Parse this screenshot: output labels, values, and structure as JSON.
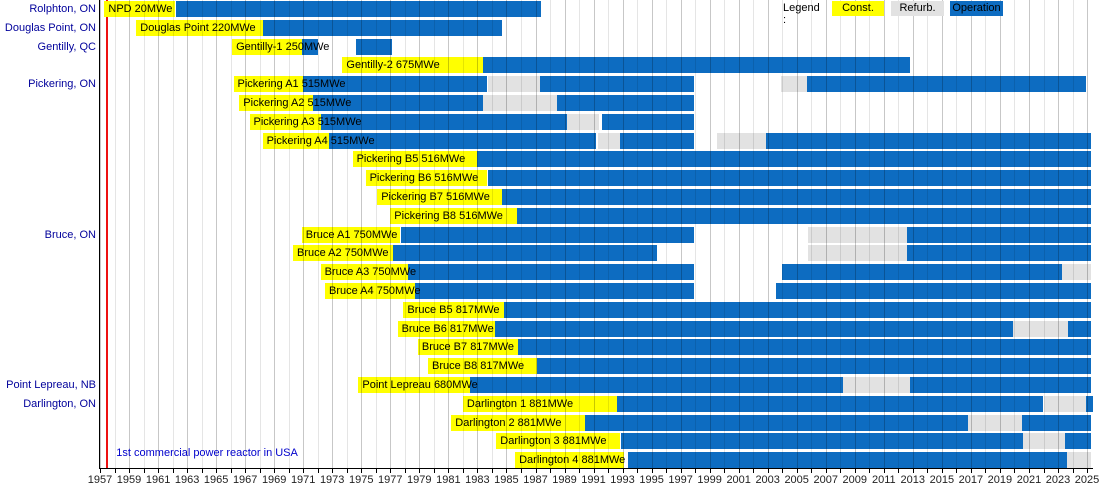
{
  "legend": {
    "title": "Legend :",
    "items": [
      {
        "label": "Const.",
        "type": "const"
      },
      {
        "label": "Refurb.",
        "type": "refurb"
      },
      {
        "label": "Operation",
        "type": "operation"
      }
    ]
  },
  "annotation": {
    "text": "1st commercial power reactor in USA",
    "year": 1957.5
  },
  "colors": {
    "const": "#ffff00",
    "refurb": "#e2e2e2",
    "operation": "#0d6cc1",
    "red_line": "#ee1111",
    "site_label": "#00009b",
    "annotation_text": "#0000cc"
  },
  "chart_data": {
    "type": "gantt",
    "x_axis": {
      "start": 1957,
      "end": 2025,
      "tick_step": 2,
      "tick_labels": [
        1957,
        1959,
        1961,
        1963,
        1965,
        1967,
        1969,
        1971,
        1973,
        1975,
        1977,
        1979,
        1981,
        1983,
        1985,
        1987,
        1989,
        1991,
        1993,
        1995,
        1997,
        1999,
        2001,
        2003,
        2005,
        2007,
        2009,
        2011,
        2013,
        2015,
        2017,
        2019,
        2021,
        2023,
        2025
      ]
    },
    "segment_types": [
      "const",
      "refurb",
      "operation"
    ],
    "rows": [
      {
        "site": "Rolphton, ON",
        "label": "NPD 20MWe",
        "segments": [
          [
            "const",
            1957.3,
            1962.2
          ],
          [
            "operation",
            1962.2,
            1987.4
          ]
        ]
      },
      {
        "site": "Douglas Point, ON",
        "label": "Douglas Point 220MWe",
        "segments": [
          [
            "const",
            1959.5,
            1968.2
          ],
          [
            "operation",
            1968.2,
            1984.7
          ]
        ]
      },
      {
        "site": "Gentilly, QC",
        "label": "Gentilly-1 250MWe",
        "segments": [
          [
            "const",
            1966.1,
            1970.9
          ],
          [
            "operation",
            1970.9,
            1972.0
          ],
          [
            "operation",
            1974.6,
            1977.1
          ]
        ]
      },
      {
        "site": "",
        "label": "Gentilly-2 675MWe",
        "segments": [
          [
            "const",
            1973.7,
            1983.4
          ],
          [
            "operation",
            1983.4,
            2012.8
          ]
        ]
      },
      {
        "site": "Pickering, ON",
        "label": "Pickering A1 515MWe",
        "segments": [
          [
            "const",
            1966.2,
            1971.0
          ],
          [
            "operation",
            1971.0,
            1983.7
          ],
          [
            "refurb",
            1983.7,
            1987.3
          ],
          [
            "operation",
            1987.3,
            1997.9
          ],
          [
            "refurb",
            2003.9,
            2005.7
          ],
          [
            "operation",
            2005.7,
            2024.9
          ]
        ]
      },
      {
        "site": "",
        "label": "Pickering A2 515MWe",
        "segments": [
          [
            "const",
            1966.6,
            1971.7
          ],
          [
            "operation",
            1971.7,
            1983.4
          ],
          [
            "refurb",
            1983.4,
            1988.5
          ],
          [
            "operation",
            1988.5,
            1997.9
          ]
        ]
      },
      {
        "site": "",
        "label": "Pickering A3 515MWe",
        "segments": [
          [
            "const",
            1967.3,
            1972.2
          ],
          [
            "operation",
            1972.2,
            1989.2
          ],
          [
            "refurb",
            1989.2,
            1991.4
          ],
          [
            "operation",
            1991.6,
            1997.9
          ]
        ]
      },
      {
        "site": "",
        "label": "Pickering A4 515MWe",
        "segments": [
          [
            "const",
            1968.2,
            1972.8
          ],
          [
            "operation",
            1972.8,
            1991.2
          ],
          [
            "refurb",
            1991.3,
            1992.8
          ],
          [
            "operation",
            1992.8,
            1997.9
          ],
          [
            "refurb",
            1999.5,
            2002.9
          ],
          [
            "operation",
            2002.9,
            2025.3
          ]
        ]
      },
      {
        "site": "",
        "label": "Pickering B5 516MWe",
        "segments": [
          [
            "const",
            1974.4,
            1983.0
          ],
          [
            "operation",
            1983.0,
            2025.3
          ]
        ]
      },
      {
        "site": "",
        "label": "Pickering B6 516MWe",
        "segments": [
          [
            "const",
            1975.3,
            1983.7
          ],
          [
            "operation",
            1983.7,
            2025.3
          ]
        ]
      },
      {
        "site": "",
        "label": "Pickering B7 516MWe",
        "segments": [
          [
            "const",
            1976.1,
            1984.7
          ],
          [
            "operation",
            1984.7,
            2025.3
          ]
        ]
      },
      {
        "site": "",
        "label": "Pickering B8 516MWe",
        "segments": [
          [
            "const",
            1977.0,
            1985.7
          ],
          [
            "operation",
            1985.7,
            2025.3
          ]
        ]
      },
      {
        "site": "Bruce, ON",
        "label": "Bruce A1 750MWe",
        "segments": [
          [
            "const",
            1970.9,
            1977.7
          ],
          [
            "operation",
            1977.7,
            1997.9
          ],
          [
            "refurb",
            2005.8,
            2012.6
          ],
          [
            "operation",
            2012.6,
            2025.3
          ]
        ]
      },
      {
        "site": "",
        "label": "Bruce A2 750MWe",
        "segments": [
          [
            "const",
            1970.3,
            1977.2
          ],
          [
            "operation",
            1977.2,
            1995.4
          ],
          [
            "refurb",
            2005.8,
            2012.6
          ],
          [
            "operation",
            2012.6,
            2025.3
          ]
        ]
      },
      {
        "site": "",
        "label": "Bruce A3 750MWe",
        "segments": [
          [
            "const",
            1972.2,
            1978.2
          ],
          [
            "operation",
            1978.2,
            1997.9
          ],
          [
            "operation",
            2004.0,
            2023.3
          ],
          [
            "refurb",
            2023.3,
            2025.3
          ]
        ]
      },
      {
        "site": "",
        "label": "Bruce A4 750MWe",
        "segments": [
          [
            "const",
            1972.5,
            1978.7
          ],
          [
            "operation",
            1978.7,
            1997.9
          ],
          [
            "operation",
            2003.6,
            2025.3
          ]
        ]
      },
      {
        "site": "",
        "label": "Bruce B5 817MWe",
        "segments": [
          [
            "const",
            1977.9,
            1984.8
          ],
          [
            "operation",
            1984.8,
            2025.3
          ]
        ]
      },
      {
        "site": "",
        "label": "Bruce B6 817MWe",
        "segments": [
          [
            "const",
            1977.5,
            1984.2
          ],
          [
            "operation",
            1984.2,
            2019.9
          ],
          [
            "refurb",
            2019.9,
            2023.7
          ],
          [
            "operation",
            2023.7,
            2025.3
          ]
        ]
      },
      {
        "site": "",
        "label": "Bruce B7 817MWe",
        "segments": [
          [
            "const",
            1978.9,
            1985.8
          ],
          [
            "operation",
            1985.8,
            2025.3
          ]
        ]
      },
      {
        "site": "",
        "label": "Bruce B8 817MWe",
        "segments": [
          [
            "const",
            1979.6,
            1987.1
          ],
          [
            "operation",
            1987.1,
            2025.3
          ]
        ]
      },
      {
        "site": "Point Lepreau, NB",
        "label": "Point Lepreau 680MWe",
        "segments": [
          [
            "const",
            1974.8,
            1982.5
          ],
          [
            "operation",
            1982.5,
            2008.2
          ],
          [
            "refurb",
            2008.2,
            2012.8
          ],
          [
            "operation",
            2012.8,
            2025.3
          ]
        ]
      },
      {
        "site": "Darlington, ON",
        "label": "Darlington 1 881MWe",
        "segments": [
          [
            "const",
            1982.0,
            1992.6
          ],
          [
            "operation",
            1992.6,
            2022.0
          ],
          [
            "refurb",
            2022.0,
            2024.9
          ],
          [
            "operation",
            2024.9,
            2025.4
          ]
        ]
      },
      {
        "site": "",
        "label": "Darlington 2 881MWe",
        "segments": [
          [
            "const",
            1981.2,
            1990.4
          ],
          [
            "operation",
            1990.4,
            2016.8
          ],
          [
            "refurb",
            2016.8,
            2020.5
          ],
          [
            "operation",
            2020.5,
            2025.3
          ]
        ]
      },
      {
        "site": "",
        "label": "Darlington 3 881MWe",
        "segments": [
          [
            "const",
            1984.3,
            1992.8
          ],
          [
            "operation",
            1992.9,
            2020.6
          ],
          [
            "refurb",
            2020.6,
            2023.5
          ],
          [
            "operation",
            2023.5,
            2025.3
          ]
        ]
      },
      {
        "site": "",
        "label": "Darlington 4 881MWe",
        "segments": [
          [
            "const",
            1985.6,
            1993.1
          ],
          [
            "operation",
            1993.4,
            2023.6
          ],
          [
            "refurb",
            2023.6,
            2025.3
          ]
        ]
      }
    ]
  }
}
